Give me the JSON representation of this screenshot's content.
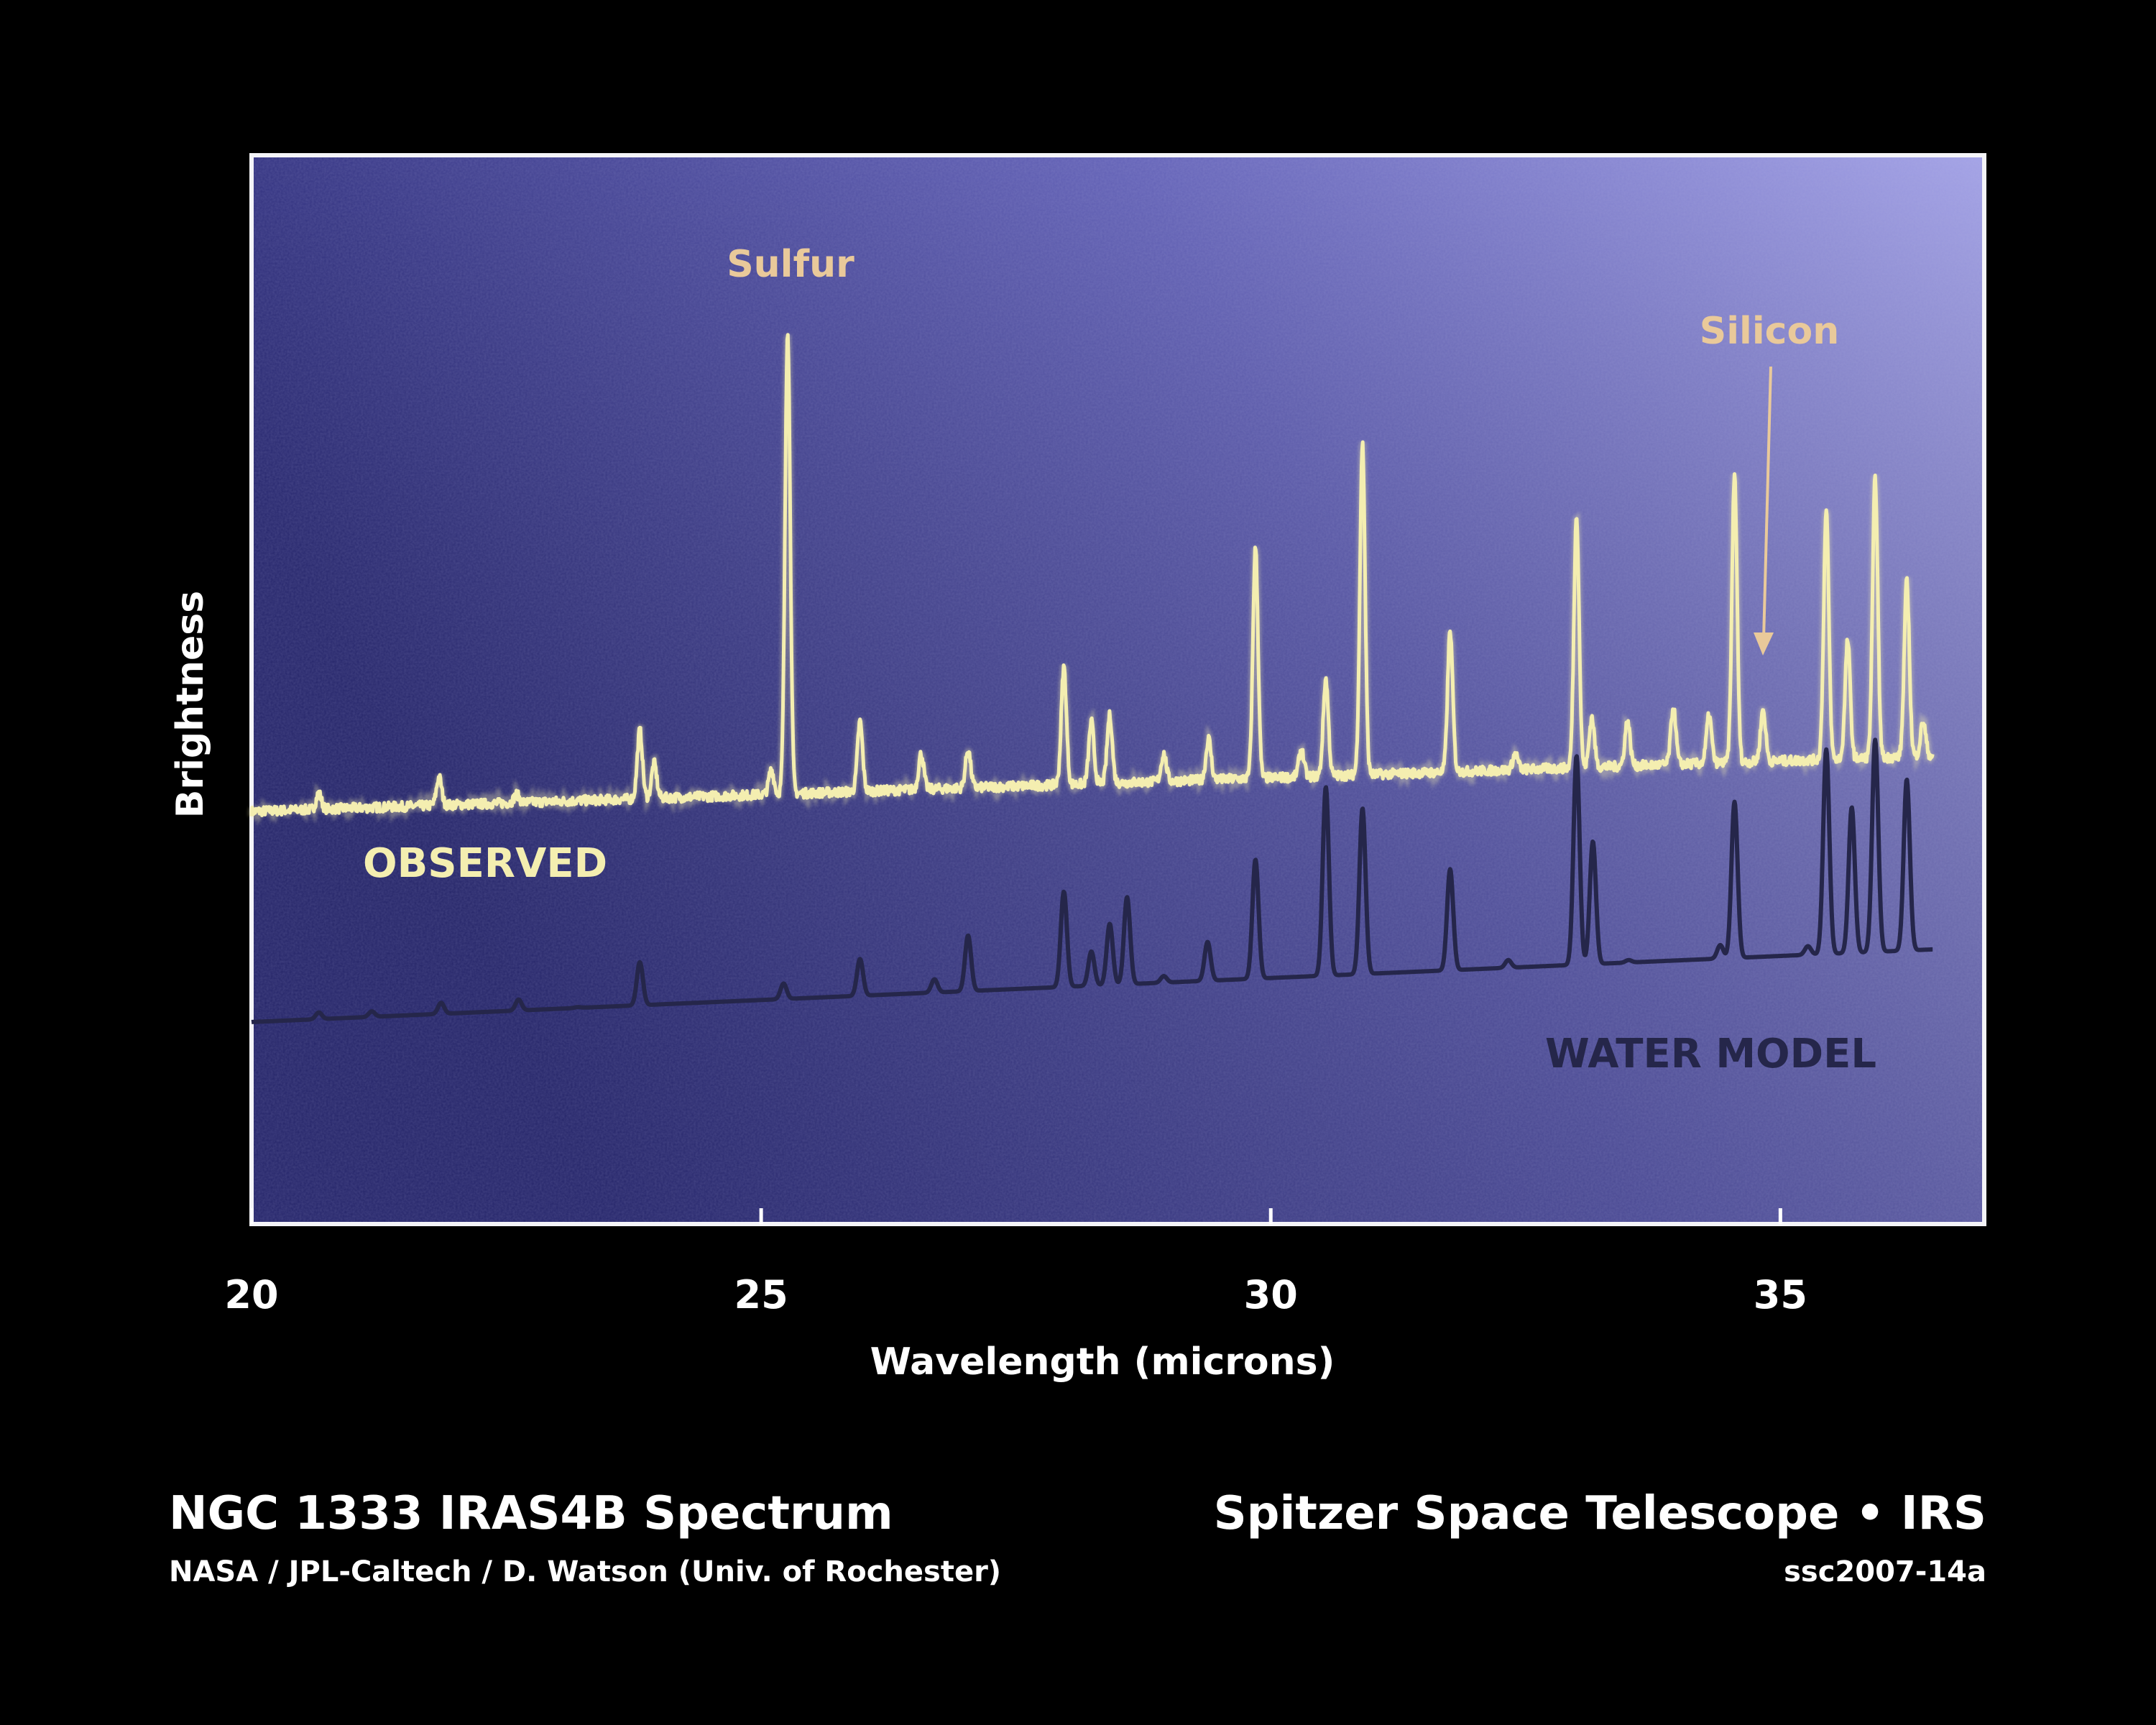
{
  "chart_data": {
    "type": "line",
    "title": "NGC 1333 IRAS4B Spectrum",
    "xlabel": "Wavelength (microns)",
    "ylabel": "Brightness",
    "xlim": [
      20,
      37
    ],
    "ylim": [
      0,
      100
    ],
    "xticks": [
      20,
      25,
      30,
      35
    ],
    "grid": false,
    "series": [
      {
        "name": "OBSERVED",
        "color": "#f4eeb0",
        "x_range": [
          20,
          36.5
        ],
        "baseline": [
          [
            20,
            38.6
          ],
          [
            36.5,
            43.8
          ]
        ],
        "peaks": [
          [
            20.66,
            40.3
          ],
          [
            21.84,
            41.8
          ],
          [
            22.6,
            40.2
          ],
          [
            23.81,
            46.2
          ],
          [
            23.95,
            43.1
          ],
          [
            25.1,
            42.5
          ],
          [
            25.26,
            83.7
          ],
          [
            25.97,
            47.0
          ],
          [
            26.57,
            44.0
          ],
          [
            27.03,
            44.4
          ],
          [
            27.97,
            52.1
          ],
          [
            28.24,
            47.0
          ],
          [
            28.42,
            47.6
          ],
          [
            28.95,
            44.0
          ],
          [
            29.39,
            45.4
          ],
          [
            29.85,
            63.3
          ],
          [
            30.3,
            44.4
          ],
          [
            30.54,
            51.0
          ],
          [
            30.9,
            73.0
          ],
          [
            31.76,
            55.5
          ],
          [
            32.4,
            44.0
          ],
          [
            33.0,
            66.4
          ],
          [
            33.15,
            47.4
          ],
          [
            33.5,
            47.1
          ],
          [
            33.95,
            48.3
          ],
          [
            34.3,
            47.6
          ],
          [
            34.55,
            70.1
          ],
          [
            34.83,
            48.1
          ],
          [
            35.45,
            66.7
          ],
          [
            35.66,
            54.6
          ],
          [
            35.93,
            69.8
          ],
          [
            36.24,
            60.1
          ],
          [
            36.4,
            47.0
          ]
        ]
      },
      {
        "name": "WATER MODEL",
        "color": "#25264a",
        "x_range": [
          20,
          36.5
        ],
        "baseline": [
          [
            20,
            18.9
          ],
          [
            36.5,
            25.7
          ]
        ],
        "peaks": [
          [
            20.66,
            19.8
          ],
          [
            21.18,
            19.9
          ],
          [
            21.86,
            20.7
          ],
          [
            22.62,
            21.0
          ],
          [
            23.2,
            20.3
          ],
          [
            23.81,
            24.5
          ],
          [
            25.22,
            22.5
          ],
          [
            25.97,
            24.8
          ],
          [
            26.7,
            22.9
          ],
          [
            27.03,
            27.0
          ],
          [
            27.97,
            31.1
          ],
          [
            28.24,
            25.5
          ],
          [
            28.42,
            28.1
          ],
          [
            28.59,
            30.6
          ],
          [
            28.95,
            23.2
          ],
          [
            29.38,
            26.4
          ],
          [
            29.85,
            34.1
          ],
          [
            30.54,
            40.9
          ],
          [
            30.9,
            38.9
          ],
          [
            31.76,
            33.2
          ],
          [
            32.33,
            24.7
          ],
          [
            33.0,
            43.8
          ],
          [
            33.16,
            35.8
          ],
          [
            33.51,
            24.7
          ],
          [
            34.41,
            26.1
          ],
          [
            34.55,
            39.5
          ],
          [
            35.27,
            26.0
          ],
          [
            35.45,
            44.4
          ],
          [
            35.7,
            39.0
          ],
          [
            35.93,
            45.3
          ],
          [
            36.24,
            41.6
          ]
        ]
      }
    ],
    "annotations": [
      {
        "text": "Sulfur",
        "x": 25.26
      },
      {
        "text": "Silicon",
        "x": 34.75,
        "arrow": true
      }
    ],
    "colors": {
      "background_left": "#2b2b78",
      "background_right": "#9d9ce2",
      "annotation": "#e9c99a"
    }
  },
  "footer": {
    "title": "NGC 1333 IRAS4B Spectrum",
    "credit": "NASA / JPL-Caltech / D. Watson (Univ. of Rochester)",
    "mission": "Spitzer Space Telescope • IRS",
    "id": "ssc2007-14a"
  }
}
